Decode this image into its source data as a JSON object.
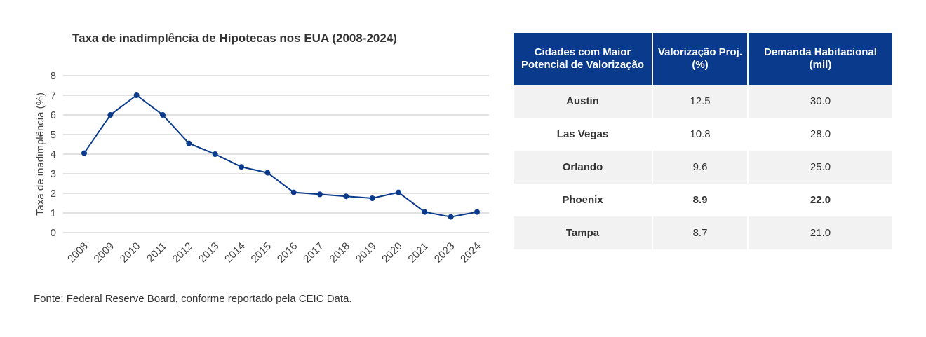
{
  "chart_data": {
    "type": "line",
    "title": "Taxa de inadimplência de Hipotecas nos EUA (2008-2024)",
    "xlabel": "",
    "ylabel": "Taxa de inadimplência (%)",
    "categories": [
      "2008",
      "2009",
      "2010",
      "2011",
      "2012",
      "2013",
      "2014",
      "2015",
      "2016",
      "2017",
      "2018",
      "2019",
      "2020",
      "2021",
      "2023",
      "2024"
    ],
    "values": [
      4.05,
      6.0,
      7.0,
      6.0,
      4.55,
      4.0,
      3.35,
      3.05,
      2.05,
      1.95,
      1.85,
      1.75,
      2.05,
      1.05,
      0.8,
      1.05
    ],
    "ylim": [
      0,
      8
    ],
    "yticks": [
      "0",
      "1",
      "2",
      "3",
      "4",
      "5",
      "6",
      "7",
      "8"
    ],
    "grid": true,
    "color": "#0a3a8c"
  },
  "source": "Fonte: Federal Reserve Board, conforme reportado  pela CEIC Data.",
  "table": {
    "headers": [
      "Cidades com Maior Potencial de Valorização",
      "Valorização Proj. (%)",
      "Demanda Habitacional (mil)"
    ],
    "rows": [
      {
        "city": "Austin",
        "growth": "12.5",
        "demand": "30.0"
      },
      {
        "city": "Las Vegas",
        "growth": "10.8",
        "demand": "28.0"
      },
      {
        "city": "Orlando",
        "growth": "9.6",
        "demand": "25.0"
      },
      {
        "city": "Phoenix",
        "growth": "8.9",
        "demand": "22.0"
      },
      {
        "city": "Tampa",
        "growth": "8.7",
        "demand": "21.0"
      }
    ],
    "header_color": "#0a3a8c"
  }
}
